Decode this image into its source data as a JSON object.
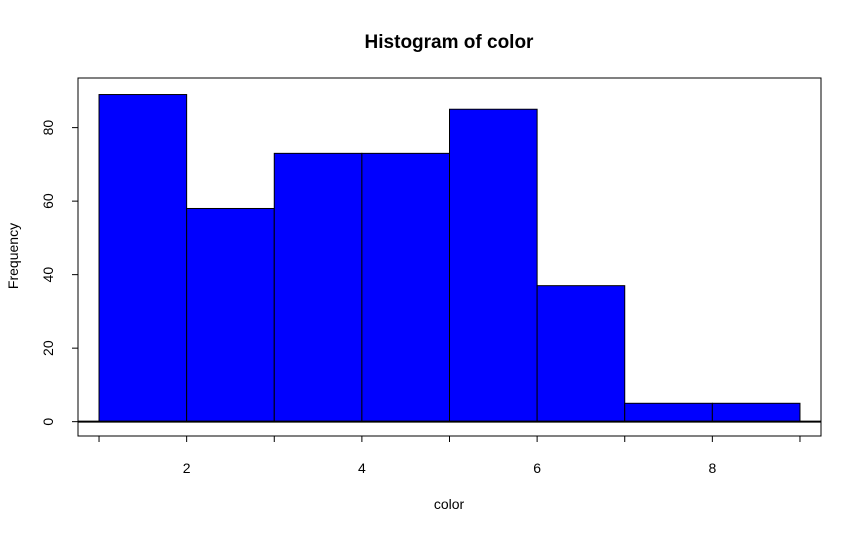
{
  "chart_data": {
    "type": "bar",
    "title": "Histogram of color",
    "xlabel": "color",
    "ylabel": "Frequency",
    "bins": [
      {
        "start": 1,
        "end": 2,
        "count": 89
      },
      {
        "start": 2,
        "end": 3,
        "count": 58
      },
      {
        "start": 3,
        "end": 4,
        "count": 73
      },
      {
        "start": 4,
        "end": 5,
        "count": 73
      },
      {
        "start": 5,
        "end": 6,
        "count": 85
      },
      {
        "start": 6,
        "end": 7,
        "count": 37
      },
      {
        "start": 7,
        "end": 8,
        "count": 5
      },
      {
        "start": 8,
        "end": 9,
        "count": 5
      }
    ],
    "xlim": [
      0.76,
      9.24
    ],
    "ylim": [
      -3.9,
      93.5
    ],
    "x_ticks": [
      2,
      4,
      6,
      8
    ],
    "x_minor_ticks": [
      1,
      2,
      3,
      4,
      5,
      6,
      7,
      8,
      9
    ],
    "y_ticks": [
      0,
      20,
      40,
      60,
      80
    ],
    "baseline": 0,
    "grid": false,
    "legend": "none",
    "bar_color": "#0000ff",
    "bar_border_color": "#000000"
  }
}
